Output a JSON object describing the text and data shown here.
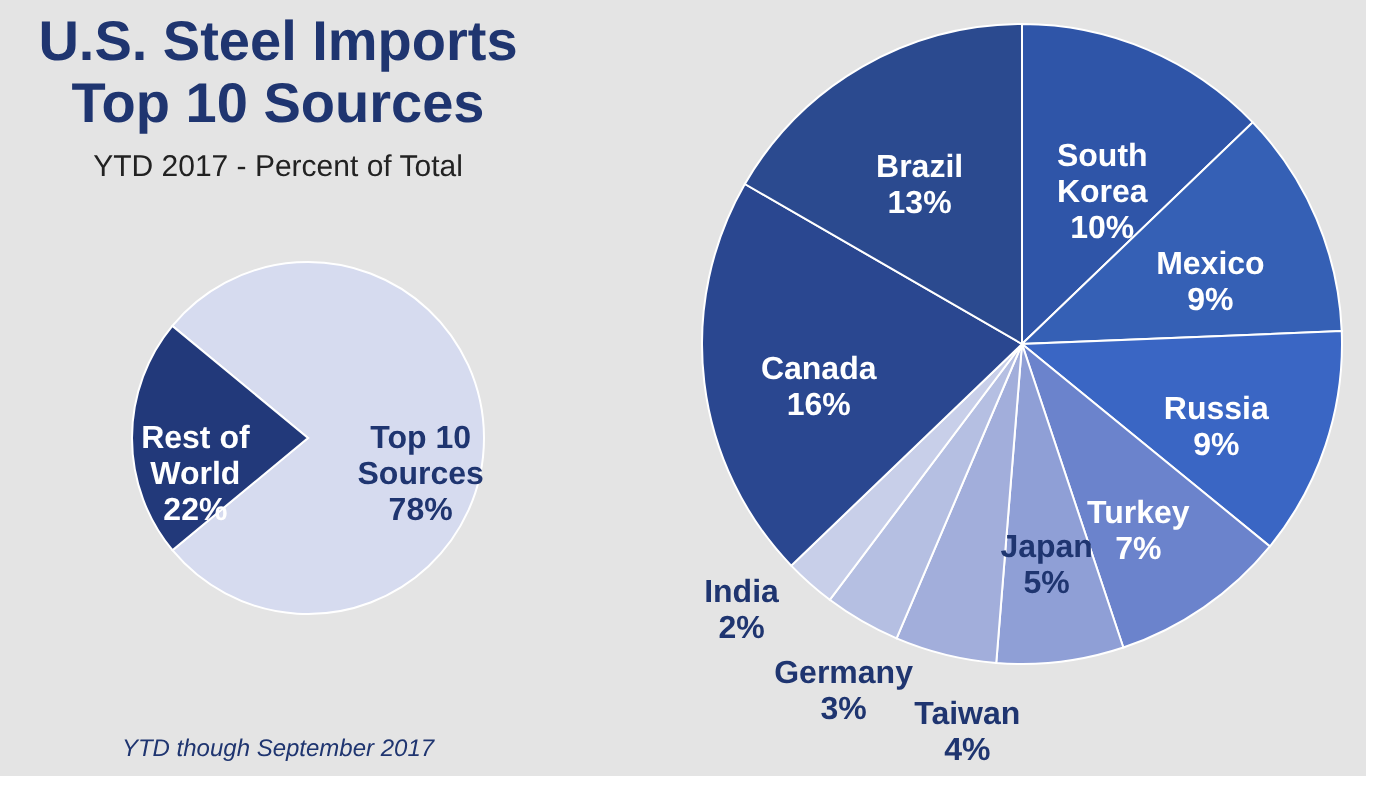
{
  "chart_data": [
    {
      "type": "pie",
      "title": "U.S. Steel Imports Top 10 Sources",
      "subtitle": "YTD 2017 - Percent of Total",
      "categories": [
        "Top 10 Sources",
        "Rest of World"
      ],
      "values": [
        78,
        22
      ],
      "colors": [
        "#d6dbef",
        "#22397a"
      ],
      "value_labels": [
        "78%",
        "22%"
      ],
      "annotations": [
        "YTD though September 2017"
      ]
    },
    {
      "type": "pie",
      "categories": [
        "South Korea",
        "Mexico",
        "Russia",
        "Turkey",
        "Japan",
        "Taiwan",
        "Germany",
        "India",
        "Canada",
        "Brazil"
      ],
      "values": [
        10,
        9,
        9,
        7,
        5,
        4,
        3,
        2,
        16,
        13
      ],
      "colors": [
        "#2f55a8",
        "#3560b5",
        "#3a66c4",
        "#6b83cc",
        "#8f9fd6",
        "#a2aedb",
        "#b5bfe2",
        "#c8cfe9",
        "#2a4790",
        "#2b4a8f"
      ],
      "value_labels": [
        "10%",
        "9%",
        "9%",
        "7%",
        "5%",
        "4%",
        "3%",
        "2%",
        "16%",
        "13%"
      ]
    }
  ]
}
